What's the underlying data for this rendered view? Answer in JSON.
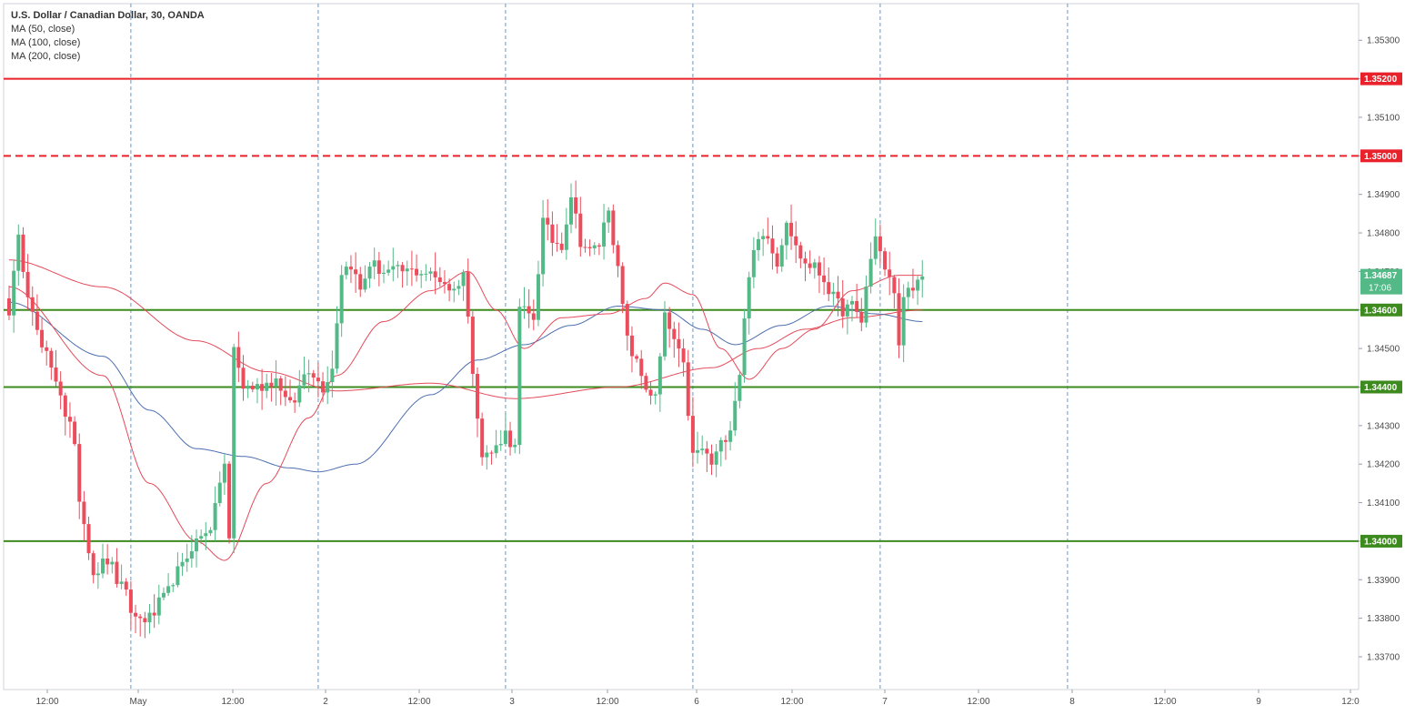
{
  "legend": {
    "title": "U.S. Dollar / Canadian Dollar, 30, OANDA",
    "indicators": [
      "MA (50, close)",
      "MA (100, close)",
      "MA (200, close)"
    ]
  },
  "price_badge": {
    "value": "1.34687",
    "timer": "17:06"
  },
  "colors": {
    "up": "#53b987",
    "down": "#eb4d5c",
    "resistance": "#e8212a",
    "support": "#3d8b1e",
    "ma50": "#e44b5a",
    "ma100": "#4d6fb0",
    "ma200": "#e44b5a",
    "grid_session": "#5f9ad8"
  },
  "chart_data": {
    "type": "candlestick",
    "symbol": "USDCAD",
    "timeframe": "30",
    "ylim": [
      1.33615,
      1.35395
    ],
    "y_ticks": [
      "1.33700",
      "1.33800",
      "1.33900",
      "1.34000",
      "1.34100",
      "1.34200",
      "1.34300",
      "1.34400",
      "1.34500",
      "1.34600",
      "1.34700",
      "1.34800",
      "1.34900",
      "1.35000",
      "1.35100",
      "1.35200",
      "1.35300"
    ],
    "x_ticks": [
      "12:00",
      "May",
      "12:00",
      "2",
      "12:00",
      "3",
      "12:00",
      "6",
      "12:00",
      "7",
      "12:00",
      "8",
      "12:00",
      "9",
      "12:0"
    ],
    "horizontal_levels": [
      {
        "label": "1.35200",
        "price": 1.352,
        "style": "solid",
        "role": "resistance"
      },
      {
        "label": "1.35000",
        "price": 1.35,
        "style": "dashed",
        "role": "resistance"
      },
      {
        "label": "1.34600",
        "price": 1.346,
        "style": "solid",
        "role": "support"
      },
      {
        "label": "1.34400",
        "price": 1.344,
        "style": "solid",
        "role": "support"
      },
      {
        "label": "1.34000",
        "price": 1.34,
        "style": "solid",
        "role": "support"
      }
    ],
    "anchors": [
      [
        0,
        1.346
      ],
      [
        2,
        1.3478
      ],
      [
        4,
        1.3465
      ],
      [
        7,
        1.345
      ],
      [
        10,
        1.3442
      ],
      [
        13,
        1.343
      ],
      [
        16,
        1.3405
      ],
      [
        18,
        1.3392
      ],
      [
        21,
        1.3395
      ],
      [
        24,
        1.3388
      ],
      [
        27,
        1.338
      ],
      [
        30,
        1.338
      ],
      [
        33,
        1.3385
      ],
      [
        36,
        1.3392
      ],
      [
        40,
        1.34
      ],
      [
        43,
        1.3404
      ],
      [
        46,
        1.342
      ],
      [
        47,
        1.34
      ],
      [
        48,
        1.345
      ],
      [
        50,
        1.344
      ],
      [
        53,
        1.344
      ],
      [
        57,
        1.3442
      ],
      [
        60,
        1.3435
      ],
      [
        64,
        1.3445
      ],
      [
        67,
        1.344
      ],
      [
        69,
        1.3445
      ],
      [
        71,
        1.347
      ],
      [
        73,
        1.3472
      ],
      [
        75,
        1.3465
      ],
      [
        77,
        1.3472
      ],
      [
        80,
        1.347
      ],
      [
        84,
        1.347
      ],
      [
        88,
        1.347
      ],
      [
        92,
        1.3468
      ],
      [
        95,
        1.3465
      ],
      [
        97,
        1.347
      ],
      [
        99,
        1.3445
      ],
      [
        101,
        1.3422
      ],
      [
        103,
        1.3423
      ],
      [
        106,
        1.3428
      ],
      [
        108,
        1.3424
      ],
      [
        109,
        1.346
      ],
      [
        112,
        1.3458
      ],
      [
        114,
        1.3483
      ],
      [
        116,
        1.3478
      ],
      [
        118,
        1.3477
      ],
      [
        120,
        1.349
      ],
      [
        122,
        1.3478
      ],
      [
        124,
        1.3475
      ],
      [
        126,
        1.3477
      ],
      [
        128,
        1.3487
      ],
      [
        130,
        1.347
      ],
      [
        132,
        1.3452
      ],
      [
        134,
        1.3446
      ],
      [
        136,
        1.344
      ],
      [
        138,
        1.3437
      ],
      [
        140,
        1.3458
      ],
      [
        142,
        1.3452
      ],
      [
        144,
        1.3445
      ],
      [
        146,
        1.3422
      ],
      [
        148,
        1.3424
      ],
      [
        150,
        1.342
      ],
      [
        152,
        1.3425
      ],
      [
        154,
        1.343
      ],
      [
        156,
        1.3444
      ],
      [
        158,
        1.347
      ],
      [
        160,
        1.3478
      ],
      [
        162,
        1.348
      ],
      [
        164,
        1.3472
      ],
      [
        166,
        1.3484
      ],
      [
        168,
        1.3476
      ],
      [
        170,
        1.3472
      ],
      [
        172,
        1.3471
      ],
      [
        174,
        1.3468
      ],
      [
        176,
        1.3463
      ],
      [
        178,
        1.346
      ],
      [
        180,
        1.3461
      ],
      [
        182,
        1.3457
      ],
      [
        183,
        1.3466
      ],
      [
        185,
        1.348
      ],
      [
        187,
        1.347
      ],
      [
        189,
        1.3465
      ],
      [
        190,
        1.345
      ],
      [
        191,
        1.3465
      ],
      [
        193,
        1.3464
      ],
      [
        195,
        1.3469
      ]
    ],
    "ma50_anchors": [
      [
        0,
        1.3466
      ],
      [
        20,
        1.3443
      ],
      [
        30,
        1.3415
      ],
      [
        40,
        1.34
      ],
      [
        46,
        1.3395
      ],
      [
        55,
        1.3415
      ],
      [
        64,
        1.3432
      ],
      [
        70,
        1.3443
      ],
      [
        80,
        1.3457
      ],
      [
        90,
        1.3465
      ],
      [
        98,
        1.347
      ],
      [
        104,
        1.346
      ],
      [
        110,
        1.345
      ],
      [
        118,
        1.3458
      ],
      [
        128,
        1.3459
      ],
      [
        136,
        1.3463
      ],
      [
        140,
        1.3467
      ],
      [
        146,
        1.3464
      ],
      [
        152,
        1.345
      ],
      [
        158,
        1.3442
      ],
      [
        165,
        1.345
      ],
      [
        172,
        1.3455
      ],
      [
        180,
        1.3465
      ],
      [
        190,
        1.3469
      ],
      [
        195,
        1.3469
      ]
    ],
    "ma100_anchors": [
      [
        0,
        1.3462
      ],
      [
        20,
        1.3448
      ],
      [
        30,
        1.3434
      ],
      [
        40,
        1.3424
      ],
      [
        50,
        1.3422
      ],
      [
        60,
        1.3419
      ],
      [
        66,
        1.3418
      ],
      [
        74,
        1.342
      ],
      [
        90,
        1.3438
      ],
      [
        100,
        1.3447
      ],
      [
        110,
        1.3451
      ],
      [
        120,
        1.3456
      ],
      [
        130,
        1.3461
      ],
      [
        140,
        1.346
      ],
      [
        148,
        1.3455
      ],
      [
        155,
        1.3451
      ],
      [
        165,
        1.3456
      ],
      [
        175,
        1.3461
      ],
      [
        185,
        1.3459
      ],
      [
        195,
        1.3457
      ]
    ],
    "ma200_anchors": [
      [
        0,
        1.3473
      ],
      [
        20,
        1.3466
      ],
      [
        40,
        1.3452
      ],
      [
        55,
        1.3444
      ],
      [
        70,
        1.3439
      ],
      [
        90,
        1.3441
      ],
      [
        108,
        1.3437
      ],
      [
        130,
        1.344
      ],
      [
        150,
        1.3445
      ],
      [
        160,
        1.345
      ],
      [
        170,
        1.3455
      ],
      [
        180,
        1.3458
      ],
      [
        195,
        1.346
      ]
    ],
    "bar_count": 196
  }
}
